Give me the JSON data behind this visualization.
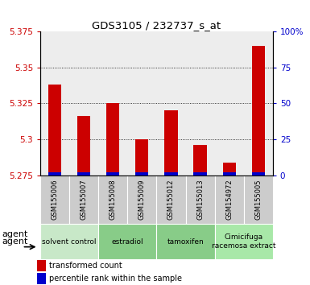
{
  "title": "GDS3105 / 232737_s_at",
  "samples": [
    "GSM155006",
    "GSM155007",
    "GSM155008",
    "GSM155009",
    "GSM155012",
    "GSM155013",
    "GSM154972",
    "GSM155005"
  ],
  "red_values": [
    5.338,
    5.316,
    5.325,
    5.3,
    5.32,
    5.296,
    5.284,
    5.365
  ],
  "ymin": 5.275,
  "ymax": 5.375,
  "yticks": [
    5.275,
    5.3,
    5.325,
    5.35,
    5.375
  ],
  "y2min": 0,
  "y2max": 100,
  "y2ticks": [
    0,
    25,
    50,
    75,
    100
  ],
  "grid_lines": [
    5.3,
    5.325,
    5.35
  ],
  "group_labels": [
    "solvent control",
    "estradiol",
    "tamoxifen",
    "Cimicifuga\nracemosa extract"
  ],
  "group_ranges": [
    [
      0,
      2
    ],
    [
      2,
      4
    ],
    [
      4,
      6
    ],
    [
      6,
      8
    ]
  ],
  "group_colors": [
    "#c8e8c8",
    "#88cc88",
    "#88cc88",
    "#a8e8a8"
  ],
  "red_color": "#cc0000",
  "blue_color": "#0000cc",
  "bar_bg_color": "#cccccc",
  "plot_bg_color": "#ffffff",
  "legend_red": "transformed count",
  "legend_blue": "percentile rank within the sample"
}
